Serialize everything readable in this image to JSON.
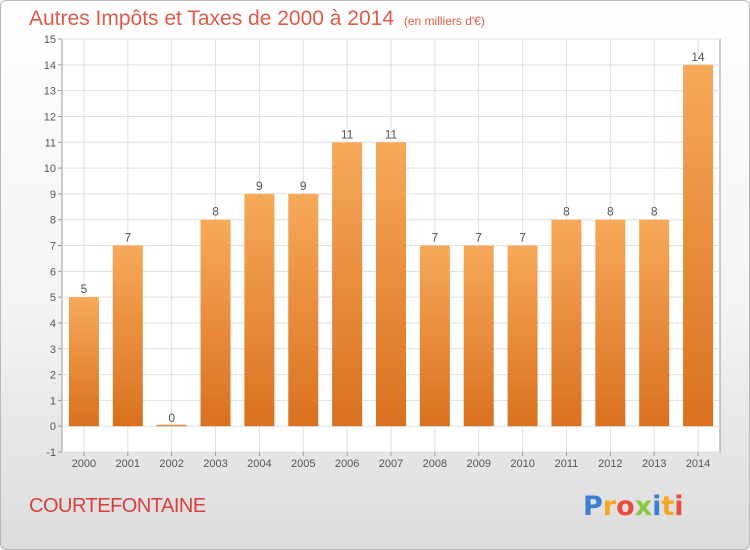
{
  "header": {
    "title": "Autres Impôts et Taxes de 2000 à 2014",
    "unit": "(en milliers d'€)"
  },
  "commune": "COURTEFONTAINE",
  "logo": {
    "letters": [
      "P",
      "r",
      "o",
      "x",
      "i",
      "t",
      "i"
    ],
    "colors": [
      "#3a7fd0",
      "#f5a623",
      "#e84c3d",
      "#8cc63f",
      "#3a7fd0",
      "#f5a623",
      "#e84c3d"
    ]
  },
  "chart_data": {
    "type": "bar",
    "title": "Autres Impôts et Taxes de 2000 à 2014",
    "subtitle": "(en milliers d'€)",
    "categories": [
      "2000",
      "2001",
      "2002",
      "2003",
      "2004",
      "2005",
      "2006",
      "2007",
      "2008",
      "2009",
      "2010",
      "2011",
      "2012",
      "2013",
      "2014"
    ],
    "values": [
      5,
      7,
      0,
      8,
      9,
      9,
      11,
      11,
      7,
      7,
      7,
      8,
      8,
      8,
      14
    ],
    "value_labels": [
      "5",
      "7",
      "0",
      "8",
      "9",
      "9",
      "11",
      "11",
      "7",
      "7",
      "7",
      "8",
      "8",
      "8",
      "14"
    ],
    "yticks": [
      -1,
      0,
      1,
      2,
      3,
      4,
      5,
      6,
      7,
      8,
      9,
      10,
      11,
      12,
      13,
      14,
      15
    ],
    "ylim": [
      -1,
      15
    ],
    "xlabel": "",
    "ylabel": "",
    "grid": true,
    "colors": {
      "bar_top": "#f7a95a",
      "bar_bottom": "#d9711f",
      "grid": "#e0e0e0",
      "axis": "#999999",
      "label": "#555555"
    }
  }
}
